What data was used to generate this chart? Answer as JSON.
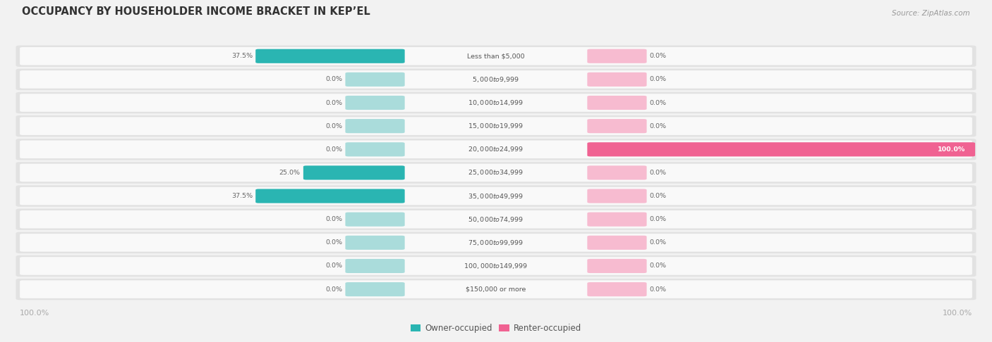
{
  "title": "OCCUPANCY BY HOUSEHOLDER INCOME BRACKET IN KEP’EL",
  "source": "Source: ZipAtlas.com",
  "categories": [
    "Less than $5,000",
    "$5,000 to $9,999",
    "$10,000 to $14,999",
    "$15,000 to $19,999",
    "$20,000 to $24,999",
    "$25,000 to $34,999",
    "$35,000 to $49,999",
    "$50,000 to $74,999",
    "$75,000 to $99,999",
    "$100,000 to $149,999",
    "$150,000 or more"
  ],
  "owner_values": [
    37.5,
    0.0,
    0.0,
    0.0,
    0.0,
    25.0,
    37.5,
    0.0,
    0.0,
    0.0,
    0.0
  ],
  "renter_values": [
    0.0,
    0.0,
    0.0,
    0.0,
    100.0,
    0.0,
    0.0,
    0.0,
    0.0,
    0.0,
    0.0
  ],
  "owner_color_active": "#2ab5b2",
  "owner_color_inactive": "#aadcdb",
  "renter_color_active": "#f06292",
  "renter_color_inactive": "#f7bbd0",
  "fig_bg": "#f2f2f2",
  "row_bg_outer": "#e2e2e2",
  "row_bg_inner": "#f9f9f9",
  "legend_owner": "Owner-occupied",
  "legend_renter": "Renter-occupied",
  "x_axis_left": "100.0%",
  "x_axis_right": "100.0%"
}
